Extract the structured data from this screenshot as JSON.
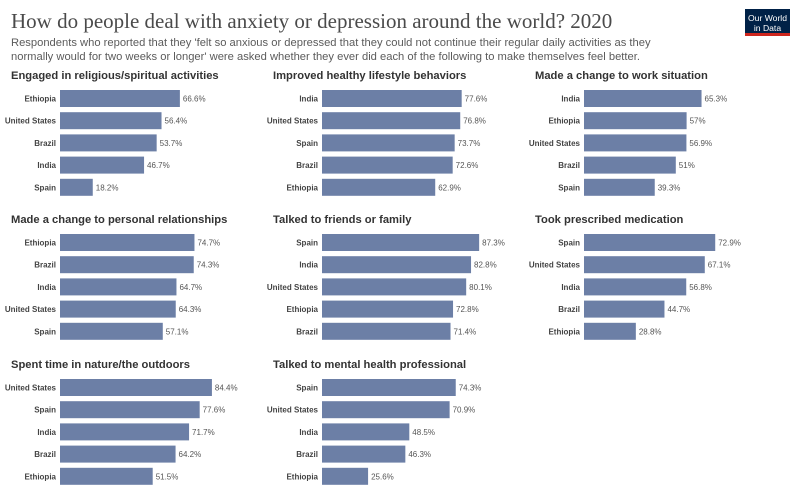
{
  "title": "How do people deal with anxiety or depression around the world? 2020",
  "subtitle": "Respondents who reported that they 'felt so anxious or depressed that they could not continue their regular daily activities as they normally would for two weeks or longer' were asked whether they ever did each of the following to make themselves feel better.",
  "logo": {
    "line1": "Our World",
    "line2": "in Data",
    "bg_color": "#002147",
    "accent_color": "#ce261e"
  },
  "colors": {
    "bar": "#6c7fa6"
  },
  "chart_data": [
    {
      "type": "bar",
      "title": "Engaged in religious/spiritual activities",
      "xlim": [
        0,
        100
      ],
      "value_suffix": "%",
      "categories": [
        "Ethiopia",
        "United States",
        "Brazil",
        "India",
        "Spain"
      ],
      "values": [
        66.6,
        56.4,
        53.7,
        46.7,
        18.2
      ],
      "labels": [
        "66.6%",
        "56.4%",
        "53.7%",
        "46.7%",
        "18.2%"
      ]
    },
    {
      "type": "bar",
      "title": "Improved healthy lifestyle behaviors",
      "xlim": [
        0,
        100
      ],
      "value_suffix": "%",
      "categories": [
        "India",
        "United States",
        "Spain",
        "Brazil",
        "Ethiopia"
      ],
      "values": [
        77.6,
        76.8,
        73.7,
        72.6,
        62.9
      ],
      "labels": [
        "77.6%",
        "76.8%",
        "73.7%",
        "72.6%",
        "62.9%"
      ]
    },
    {
      "type": "bar",
      "title": "Made a change to work situation",
      "xlim": [
        0,
        100
      ],
      "value_suffix": "%",
      "categories": [
        "India",
        "Ethiopia",
        "United States",
        "Brazil",
        "Spain"
      ],
      "values": [
        65.3,
        57,
        56.9,
        51,
        39.3
      ],
      "labels": [
        "65.3%",
        "57%",
        "56.9%",
        "51%",
        "39.3%"
      ]
    },
    {
      "type": "bar",
      "title": "Made a change to personal relationships",
      "xlim": [
        0,
        100
      ],
      "value_suffix": "%",
      "categories": [
        "Ethiopia",
        "Brazil",
        "India",
        "United States",
        "Spain"
      ],
      "values": [
        74.7,
        74.3,
        64.7,
        64.3,
        57.1
      ],
      "labels": [
        "74.7%",
        "74.3%",
        "64.7%",
        "64.3%",
        "57.1%"
      ]
    },
    {
      "type": "bar",
      "title": "Talked to friends or family",
      "xlim": [
        0,
        100
      ],
      "value_suffix": "%",
      "categories": [
        "Spain",
        "India",
        "United States",
        "Ethiopia",
        "Brazil"
      ],
      "values": [
        87.3,
        82.8,
        80.1,
        72.8,
        71.4
      ],
      "labels": [
        "87.3%",
        "82.8%",
        "80.1%",
        "72.8%",
        "71.4%"
      ]
    },
    {
      "type": "bar",
      "title": "Took prescribed medication",
      "xlim": [
        0,
        100
      ],
      "value_suffix": "%",
      "categories": [
        "Spain",
        "United States",
        "India",
        "Brazil",
        "Ethiopia"
      ],
      "values": [
        72.9,
        67.1,
        56.8,
        44.7,
        28.8
      ],
      "labels": [
        "72.9%",
        "67.1%",
        "56.8%",
        "44.7%",
        "28.8%"
      ]
    },
    {
      "type": "bar",
      "title": "Spent time in nature/the outdoors",
      "xlim": [
        0,
        100
      ],
      "value_suffix": "%",
      "categories": [
        "United States",
        "Spain",
        "India",
        "Brazil",
        "Ethiopia"
      ],
      "values": [
        84.4,
        77.6,
        71.7,
        64.2,
        51.5
      ],
      "labels": [
        "84.4%",
        "77.6%",
        "71.7%",
        "64.2%",
        "51.5%"
      ]
    },
    {
      "type": "bar",
      "title": "Talked to mental health professional",
      "xlim": [
        0,
        100
      ],
      "value_suffix": "%",
      "categories": [
        "Spain",
        "United States",
        "India",
        "Brazil",
        "Ethiopia"
      ],
      "values": [
        74.3,
        70.9,
        48.5,
        46.3,
        25.6
      ],
      "labels": [
        "74.3%",
        "70.9%",
        "48.5%",
        "46.3%",
        "25.6%"
      ]
    }
  ]
}
